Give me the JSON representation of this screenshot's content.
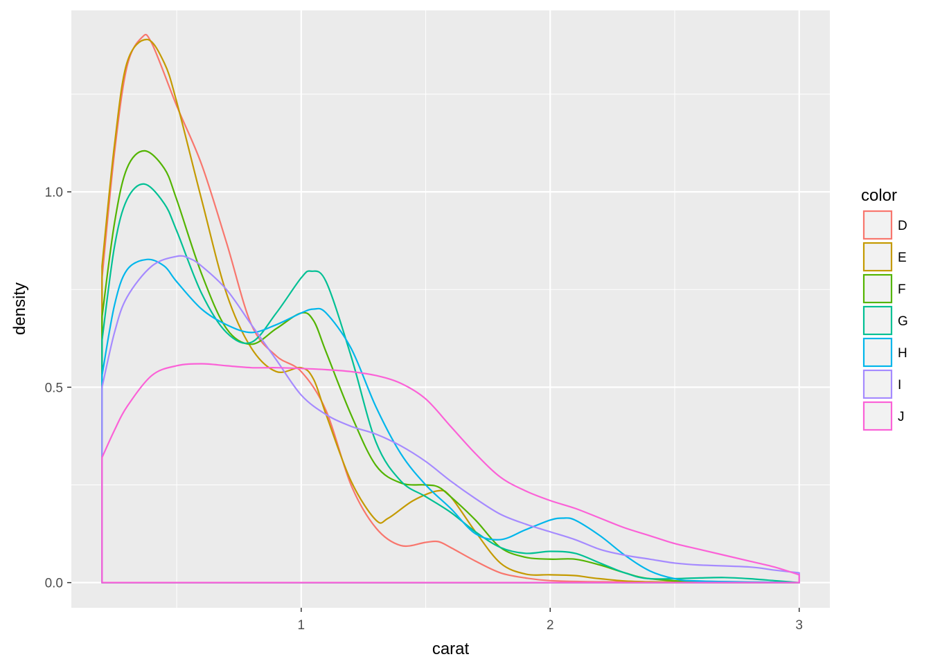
{
  "chart_data": {
    "type": "line",
    "subtype": "density",
    "title": "",
    "xlabel": "carat",
    "ylabel": "density",
    "xlim": [
      0.2,
      3.0
    ],
    "ylim": [
      0.0,
      1.4
    ],
    "x_ticks": [
      1,
      2,
      3
    ],
    "x_tick_labels": [
      "1",
      "2",
      "3"
    ],
    "y_ticks": [
      0.0,
      0.5,
      1.0
    ],
    "y_tick_labels": [
      "0.0",
      "0.5",
      "1.0"
    ],
    "grid": true,
    "legend": {
      "title": "color",
      "position": "right"
    },
    "series": [
      {
        "name": "D",
        "color": "#F8766D",
        "points": [
          [
            0.2,
            0.78
          ],
          [
            0.25,
            1.1
          ],
          [
            0.3,
            1.32
          ],
          [
            0.36,
            1.395
          ],
          [
            0.4,
            1.38
          ],
          [
            0.5,
            1.22
          ],
          [
            0.6,
            1.07
          ],
          [
            0.7,
            0.87
          ],
          [
            0.8,
            0.66
          ],
          [
            0.9,
            0.58
          ],
          [
            1.0,
            0.54
          ],
          [
            1.1,
            0.44
          ],
          [
            1.2,
            0.25
          ],
          [
            1.3,
            0.14
          ],
          [
            1.4,
            0.095
          ],
          [
            1.5,
            0.103
          ],
          [
            1.55,
            0.105
          ],
          [
            1.6,
            0.09
          ],
          [
            1.7,
            0.055
          ],
          [
            1.8,
            0.025
          ],
          [
            1.9,
            0.012
          ],
          [
            2.0,
            0.005
          ],
          [
            2.2,
            0.002
          ],
          [
            2.5,
            0.001
          ],
          [
            3.0,
            0.0
          ]
        ]
      },
      {
        "name": "E",
        "color": "#C49A00",
        "points": [
          [
            0.2,
            0.81
          ],
          [
            0.25,
            1.12
          ],
          [
            0.3,
            1.33
          ],
          [
            0.38,
            1.39
          ],
          [
            0.45,
            1.33
          ],
          [
            0.5,
            1.23
          ],
          [
            0.6,
            0.98
          ],
          [
            0.7,
            0.74
          ],
          [
            0.8,
            0.6
          ],
          [
            0.9,
            0.54
          ],
          [
            1.0,
            0.55
          ],
          [
            1.05,
            0.52
          ],
          [
            1.1,
            0.43
          ],
          [
            1.2,
            0.26
          ],
          [
            1.3,
            0.16
          ],
          [
            1.35,
            0.165
          ],
          [
            1.45,
            0.21
          ],
          [
            1.55,
            0.235
          ],
          [
            1.6,
            0.22
          ],
          [
            1.7,
            0.13
          ],
          [
            1.8,
            0.05
          ],
          [
            1.9,
            0.022
          ],
          [
            2.0,
            0.02
          ],
          [
            2.1,
            0.018
          ],
          [
            2.2,
            0.01
          ],
          [
            2.4,
            0.002
          ],
          [
            3.0,
            0.0
          ]
        ]
      },
      {
        "name": "F",
        "color": "#53B400",
        "points": [
          [
            0.2,
            0.68
          ],
          [
            0.25,
            0.92
          ],
          [
            0.3,
            1.06
          ],
          [
            0.37,
            1.105
          ],
          [
            0.45,
            1.06
          ],
          [
            0.5,
            0.98
          ],
          [
            0.6,
            0.79
          ],
          [
            0.7,
            0.65
          ],
          [
            0.8,
            0.61
          ],
          [
            0.9,
            0.65
          ],
          [
            1.0,
            0.69
          ],
          [
            1.05,
            0.67
          ],
          [
            1.1,
            0.59
          ],
          [
            1.2,
            0.43
          ],
          [
            1.3,
            0.3
          ],
          [
            1.4,
            0.255
          ],
          [
            1.5,
            0.25
          ],
          [
            1.55,
            0.245
          ],
          [
            1.6,
            0.22
          ],
          [
            1.7,
            0.16
          ],
          [
            1.8,
            0.09
          ],
          [
            1.9,
            0.065
          ],
          [
            2.0,
            0.06
          ],
          [
            2.1,
            0.06
          ],
          [
            2.2,
            0.045
          ],
          [
            2.3,
            0.025
          ],
          [
            2.4,
            0.01
          ],
          [
            2.6,
            0.002
          ],
          [
            3.0,
            0.0
          ]
        ]
      },
      {
        "name": "G",
        "color": "#00C094",
        "points": [
          [
            0.2,
            0.62
          ],
          [
            0.25,
            0.86
          ],
          [
            0.3,
            0.98
          ],
          [
            0.37,
            1.02
          ],
          [
            0.45,
            0.97
          ],
          [
            0.5,
            0.9
          ],
          [
            0.6,
            0.74
          ],
          [
            0.7,
            0.64
          ],
          [
            0.8,
            0.615
          ],
          [
            0.9,
            0.69
          ],
          [
            1.0,
            0.78
          ],
          [
            1.04,
            0.797
          ],
          [
            1.1,
            0.77
          ],
          [
            1.2,
            0.58
          ],
          [
            1.3,
            0.36
          ],
          [
            1.4,
            0.26
          ],
          [
            1.5,
            0.22
          ],
          [
            1.6,
            0.18
          ],
          [
            1.7,
            0.13
          ],
          [
            1.8,
            0.09
          ],
          [
            1.9,
            0.075
          ],
          [
            2.0,
            0.08
          ],
          [
            2.1,
            0.075
          ],
          [
            2.2,
            0.05
          ],
          [
            2.3,
            0.025
          ],
          [
            2.4,
            0.01
          ],
          [
            2.6,
            0.012
          ],
          [
            2.7,
            0.013
          ],
          [
            2.8,
            0.01
          ],
          [
            2.9,
            0.005
          ],
          [
            3.0,
            0.0
          ]
        ]
      },
      {
        "name": "H",
        "color": "#00B6EB",
        "points": [
          [
            0.2,
            0.53
          ],
          [
            0.25,
            0.71
          ],
          [
            0.3,
            0.8
          ],
          [
            0.38,
            0.827
          ],
          [
            0.45,
            0.81
          ],
          [
            0.5,
            0.77
          ],
          [
            0.6,
            0.7
          ],
          [
            0.7,
            0.66
          ],
          [
            0.8,
            0.64
          ],
          [
            0.9,
            0.66
          ],
          [
            1.0,
            0.69
          ],
          [
            1.05,
            0.7
          ],
          [
            1.1,
            0.69
          ],
          [
            1.2,
            0.6
          ],
          [
            1.3,
            0.45
          ],
          [
            1.4,
            0.33
          ],
          [
            1.5,
            0.25
          ],
          [
            1.6,
            0.19
          ],
          [
            1.7,
            0.125
          ],
          [
            1.8,
            0.11
          ],
          [
            1.9,
            0.135
          ],
          [
            2.0,
            0.16
          ],
          [
            2.05,
            0.165
          ],
          [
            2.1,
            0.16
          ],
          [
            2.2,
            0.12
          ],
          [
            2.3,
            0.07
          ],
          [
            2.4,
            0.03
          ],
          [
            2.5,
            0.01
          ],
          [
            2.6,
            0.004
          ],
          [
            3.0,
            0.0
          ]
        ]
      },
      {
        "name": "I",
        "color": "#A58AFF",
        "points": [
          [
            0.2,
            0.5
          ],
          [
            0.25,
            0.64
          ],
          [
            0.3,
            0.73
          ],
          [
            0.4,
            0.81
          ],
          [
            0.5,
            0.835
          ],
          [
            0.55,
            0.83
          ],
          [
            0.6,
            0.81
          ],
          [
            0.7,
            0.75
          ],
          [
            0.8,
            0.66
          ],
          [
            0.9,
            0.57
          ],
          [
            1.0,
            0.48
          ],
          [
            1.1,
            0.43
          ],
          [
            1.2,
            0.4
          ],
          [
            1.3,
            0.38
          ],
          [
            1.4,
            0.35
          ],
          [
            1.5,
            0.31
          ],
          [
            1.6,
            0.26
          ],
          [
            1.7,
            0.215
          ],
          [
            1.8,
            0.175
          ],
          [
            1.9,
            0.15
          ],
          [
            2.0,
            0.13
          ],
          [
            2.1,
            0.11
          ],
          [
            2.2,
            0.085
          ],
          [
            2.3,
            0.07
          ],
          [
            2.4,
            0.06
          ],
          [
            2.5,
            0.05
          ],
          [
            2.6,
            0.045
          ],
          [
            2.8,
            0.04
          ],
          [
            2.9,
            0.032
          ],
          [
            3.0,
            0.025
          ]
        ]
      },
      {
        "name": "J",
        "color": "#FB61D7",
        "points": [
          [
            0.2,
            0.32
          ],
          [
            0.25,
            0.39
          ],
          [
            0.3,
            0.45
          ],
          [
            0.4,
            0.53
          ],
          [
            0.5,
            0.555
          ],
          [
            0.6,
            0.56
          ],
          [
            0.7,
            0.555
          ],
          [
            0.8,
            0.55
          ],
          [
            0.9,
            0.55
          ],
          [
            1.0,
            0.548
          ],
          [
            1.1,
            0.545
          ],
          [
            1.2,
            0.54
          ],
          [
            1.3,
            0.53
          ],
          [
            1.4,
            0.51
          ],
          [
            1.5,
            0.47
          ],
          [
            1.6,
            0.4
          ],
          [
            1.7,
            0.33
          ],
          [
            1.8,
            0.27
          ],
          [
            1.9,
            0.235
          ],
          [
            2.0,
            0.21
          ],
          [
            2.1,
            0.19
          ],
          [
            2.2,
            0.165
          ],
          [
            2.3,
            0.14
          ],
          [
            2.4,
            0.12
          ],
          [
            2.5,
            0.1
          ],
          [
            2.6,
            0.085
          ],
          [
            2.7,
            0.07
          ],
          [
            2.8,
            0.055
          ],
          [
            2.9,
            0.04
          ],
          [
            3.0,
            0.02
          ]
        ]
      }
    ]
  }
}
